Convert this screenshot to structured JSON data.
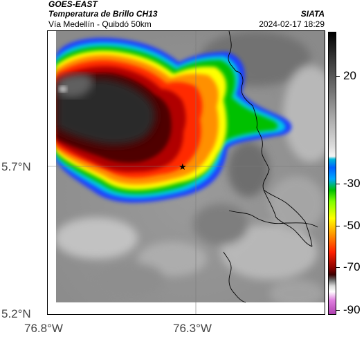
{
  "header": {
    "satellite": "GOES-EAST",
    "product": "Temperatura de Brillo CH13",
    "subtitle": "Vía Medellín - Quibdó 50km",
    "org": "SIATA",
    "datetime": "2024-02-17 18:29"
  },
  "map": {
    "lat_ticks": [
      "5.7°N",
      "5.2°N"
    ],
    "lon_ticks": [
      "76.8°W",
      "76.3°W"
    ],
    "marker": "star-marker"
  },
  "colorbar": {
    "ticks": [
      "20",
      "-30",
      "-50",
      "-70",
      "-90"
    ],
    "colors": [
      "#000000",
      "#ffffff",
      "#00b8d8",
      "#00ff00",
      "#ffff00",
      "#ff0000",
      "#5a0000",
      "#ffffff",
      "#c040c0"
    ]
  }
}
